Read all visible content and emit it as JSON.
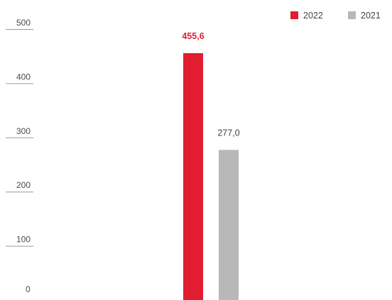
{
  "chart_data": {
    "type": "bar",
    "categories": [
      ""
    ],
    "series": [
      {
        "name": "2022",
        "values": [
          455.6
        ],
        "label": "455,6",
        "color": "#e11d2f",
        "label_color": "#e11d2f",
        "label_bold": true
      },
      {
        "name": "2021",
        "values": [
          277.0
        ],
        "label": "277,0",
        "color": "#b8b8b8",
        "label_color": "#444444",
        "label_bold": false
      }
    ],
    "title": "",
    "xlabel": "",
    "ylabel": "",
    "ylim": [
      0,
      500
    ],
    "yticks": [
      0,
      100,
      200,
      300,
      400,
      500
    ],
    "ytick_labels": [
      "0",
      "100",
      "200",
      "300",
      "400",
      "500"
    ],
    "grid": false,
    "legend": "top-right"
  }
}
